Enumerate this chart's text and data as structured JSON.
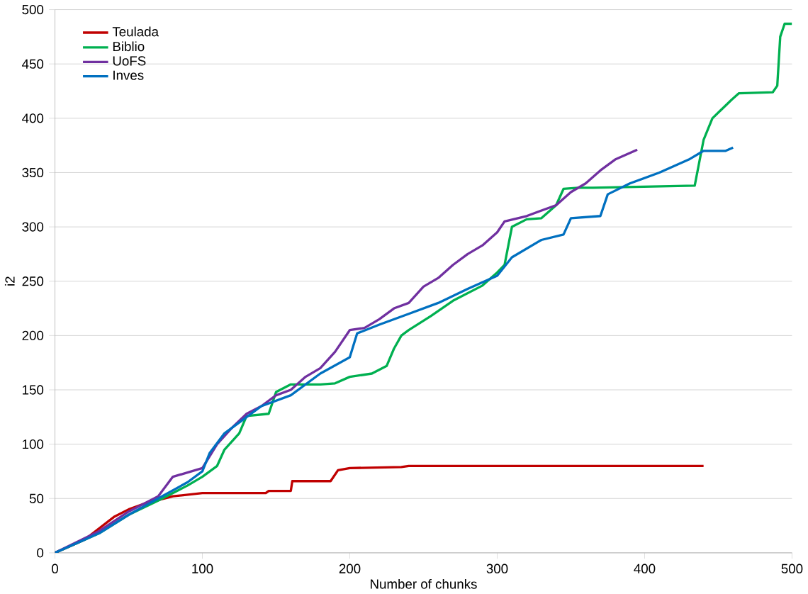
{
  "chart_data": {
    "type": "line",
    "xlabel": "Number of chunks",
    "ylabel": "i2",
    "xlim": [
      0,
      500
    ],
    "ylim": [
      0,
      500
    ],
    "xticks": [
      0,
      100,
      200,
      300,
      400,
      500
    ],
    "yticks": [
      0,
      50,
      100,
      150,
      200,
      250,
      300,
      350,
      400,
      450,
      500
    ],
    "grid": "y",
    "legend": "top left",
    "marker": "none",
    "line_style": "solid",
    "series": [
      {
        "name": "Teulada",
        "color": "#c00000",
        "x": [
          0,
          20,
          40,
          50,
          60,
          80,
          100,
          143,
          145,
          160,
          161,
          187,
          192,
          200,
          235,
          240,
          440
        ],
        "values": [
          0,
          12,
          33,
          40,
          45,
          52,
          55,
          55,
          57,
          57,
          66,
          66,
          76,
          78,
          79,
          80,
          80
        ]
      },
      {
        "name": "Biblio",
        "color": "#00b050",
        "x": [
          0,
          30,
          50,
          70,
          90,
          100,
          110,
          115,
          125,
          130,
          145,
          150,
          160,
          180,
          190,
          200,
          215,
          225,
          230,
          235,
          240,
          255,
          270,
          290,
          300,
          305,
          310,
          320,
          330,
          340,
          345,
          355,
          365,
          434,
          440,
          446,
          459,
          464,
          487,
          490,
          492,
          495,
          500
        ],
        "values": [
          0,
          18,
          35,
          48,
          62,
          70,
          80,
          95,
          110,
          126,
          128,
          148,
          155,
          155,
          156,
          162,
          165,
          172,
          188,
          200,
          205,
          218,
          232,
          246,
          258,
          265,
          300,
          307,
          308,
          320,
          335,
          336,
          336,
          338,
          380,
          400,
          417,
          423,
          424,
          430,
          475,
          487,
          487
        ]
      },
      {
        "name": "UoFS",
        "color": "#7030a0",
        "x": [
          0,
          30,
          50,
          70,
          80,
          100,
          110,
          120,
          130,
          140,
          150,
          160,
          170,
          180,
          190,
          200,
          210,
          220,
          230,
          240,
          250,
          260,
          270,
          280,
          290,
          300,
          305,
          320,
          340,
          350,
          360,
          370,
          380,
          395
        ],
        "values": [
          0,
          20,
          38,
          52,
          70,
          78,
          100,
          115,
          128,
          135,
          145,
          150,
          162,
          170,
          185,
          205,
          207,
          215,
          225,
          230,
          245,
          253,
          265,
          275,
          283,
          295,
          305,
          310,
          320,
          332,
          340,
          352,
          362,
          371
        ]
      },
      {
        "name": "Inves",
        "color": "#0070c0",
        "x": [
          0,
          30,
          50,
          70,
          90,
          100,
          105,
          115,
          130,
          140,
          160,
          180,
          200,
          205,
          220,
          240,
          260,
          280,
          300,
          310,
          330,
          345,
          350,
          370,
          375,
          390,
          410,
          430,
          440,
          455,
          460
        ],
        "values": [
          0,
          18,
          35,
          50,
          65,
          75,
          92,
          110,
          125,
          135,
          145,
          165,
          180,
          202,
          210,
          220,
          230,
          243,
          255,
          272,
          288,
          293,
          308,
          310,
          330,
          340,
          350,
          362,
          370,
          370,
          373
        ]
      }
    ]
  }
}
